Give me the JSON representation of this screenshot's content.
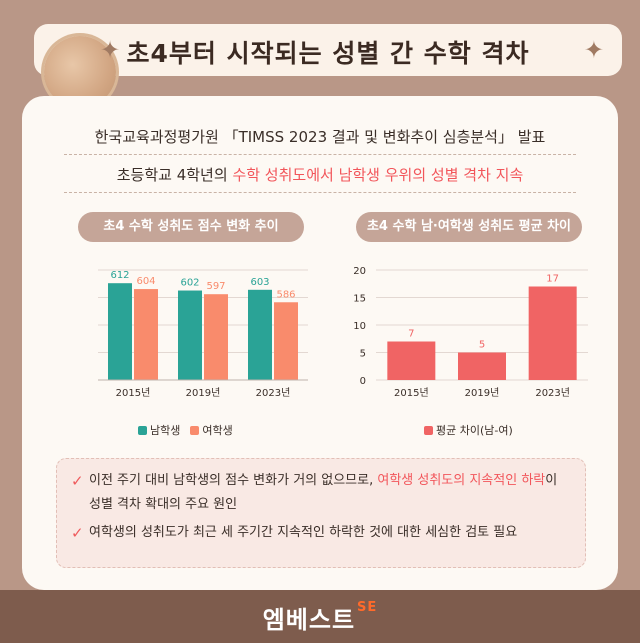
{
  "title": "초4부터 시작되는 성별 간 수학 격차",
  "sparkle": "✦",
  "subtitle": "한국교육과정평가원 「TIMSS 2023 결과 및 변화추이 심층분석」 발표",
  "headline": {
    "prefix": "초등학교 4학년의 ",
    "highlight": "수학 성취도에서 남학생 우위의 성별 격차 지속"
  },
  "colors": {
    "male": "#2aa396",
    "female": "#f98b6c",
    "gap": "#f06464",
    "accent": "#f2565b"
  },
  "chart_data": [
    {
      "type": "bar",
      "title": "초4 수학 성취도 점수 변화 추이",
      "categories": [
        "2015년",
        "2019년",
        "2023년"
      ],
      "series": [
        {
          "name": "남학생",
          "values": [
            612,
            602,
            603
          ]
        },
        {
          "name": "여학생",
          "values": [
            604,
            597,
            586
          ]
        }
      ],
      "ylim": [
        480,
        630
      ],
      "grid": true,
      "legend": "bottom"
    },
    {
      "type": "bar",
      "title": "초4 수학 남·여학생 성취도 평균 차이",
      "categories": [
        "2015년",
        "2019년",
        "2023년"
      ],
      "series": [
        {
          "name": "평균 차이(남-여)",
          "values": [
            7,
            5,
            17
          ]
        }
      ],
      "ylim": [
        0,
        20
      ],
      "yticks": [
        0,
        5,
        10,
        15,
        20
      ],
      "grid": true,
      "legend": "bottom"
    }
  ],
  "notes": [
    {
      "check": "✓",
      "prefix": "이전 주기 대비 남학생의 점수 변화가 거의 없으므로, ",
      "highlight": "여학생 성취도의 지속적인 하락",
      "suffix": "이 성별 격차 확대의 주요 원인"
    },
    {
      "check": "✓",
      "text": "여학생의 성취도가 최근 세 주기간 지속적인 하락한 것에 대한 세심한 검토 필요"
    }
  ],
  "footer": {
    "brand": "엠베스트",
    "badge": "SE"
  }
}
